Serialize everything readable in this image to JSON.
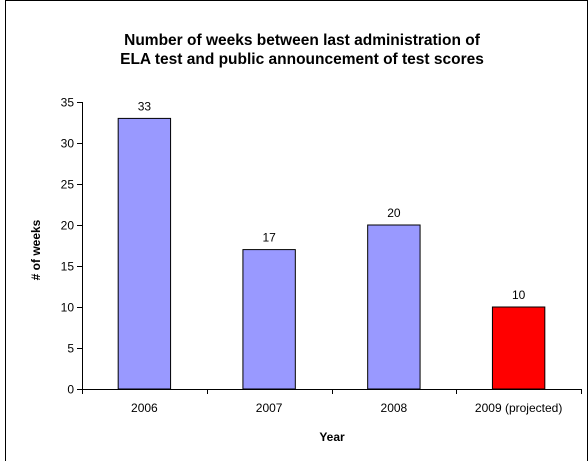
{
  "chart_data": {
    "type": "bar",
    "title": "Number of weeks between last administration of ELA test and public announcement of test scores",
    "title_lines": [
      "Number of weeks between last administration of",
      "ELA test and public announcement of test scores"
    ],
    "xlabel": "Year",
    "ylabel": "# of weeks",
    "categories": [
      "2006",
      "2007",
      "2008",
      "2009 (projected)"
    ],
    "values": [
      33,
      17,
      20,
      10
    ],
    "data_labels": [
      "33",
      "17",
      "20",
      "10"
    ],
    "bar_colors": [
      "#9999ff",
      "#9999ff",
      "#9999ff",
      "#ff0000"
    ],
    "ylim": [
      0,
      35
    ],
    "yticks": [
      "0",
      "5",
      "10",
      "15",
      "20",
      "25",
      "30",
      "35"
    ],
    "grid": false,
    "legend": "none"
  }
}
